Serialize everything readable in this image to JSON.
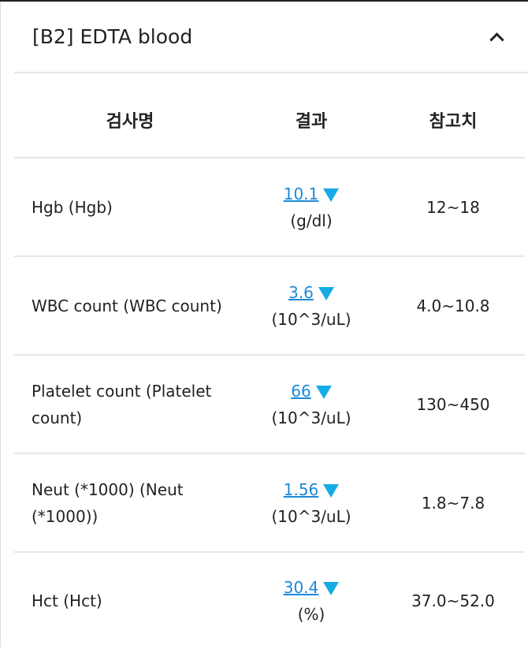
{
  "section": {
    "title": "[B2] EDTA blood",
    "collapse_icon": "chevron-up-icon"
  },
  "columns": {
    "name": "검사명",
    "result": "결과",
    "reference": "참고치"
  },
  "colors": {
    "link": "#1b8ad8",
    "low_indicator": "#15ace6"
  },
  "rows": [
    {
      "name": "Hgb (Hgb)",
      "value": "10.1",
      "unit": "(g/dl)",
      "flag": "low",
      "reference": "12~18"
    },
    {
      "name": "WBC count (WBC count)",
      "value": "3.6",
      "unit": "(10^3/uL)",
      "flag": "low",
      "reference": "4.0~10.8"
    },
    {
      "name": "Platelet count (Platelet count)",
      "value": "66",
      "unit": "(10^3/uL)",
      "flag": "low",
      "reference": "130~450"
    },
    {
      "name": "Neut (*1000) (Neut (*1000))",
      "value": "1.56",
      "unit": "(10^3/uL)",
      "flag": "low",
      "reference": "1.8~7.8"
    },
    {
      "name": "Hct (Hct)",
      "value": "30.4",
      "unit": "(%)",
      "flag": "low",
      "reference": "37.0~52.0"
    }
  ]
}
